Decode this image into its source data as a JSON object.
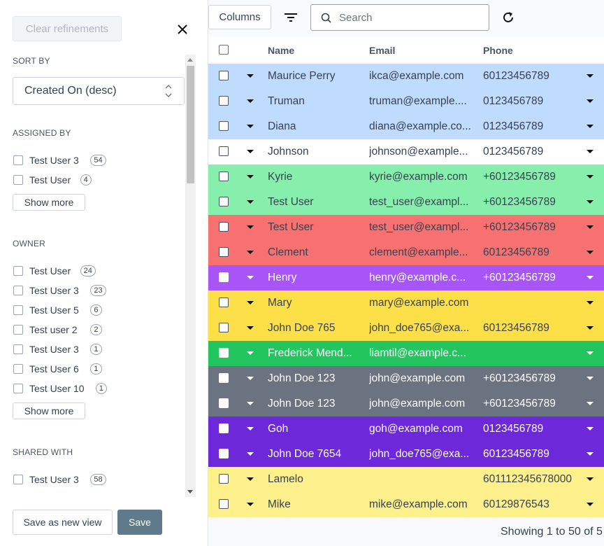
{
  "sidebar": {
    "clear_button": "Clear refinements",
    "sort_by": {
      "title": "SORT BY",
      "value": "Created On (desc)"
    },
    "sections": [
      {
        "title": "ASSIGNED BY",
        "options": [
          {
            "label": "Test User 3",
            "count": 54
          },
          {
            "label": "Test User",
            "count": 4
          }
        ],
        "show_more": "Show more"
      },
      {
        "title": "OWNER",
        "options": [
          {
            "label": "Test User",
            "count": 24
          },
          {
            "label": "Test User 3",
            "count": 23
          },
          {
            "label": "Test User 5",
            "count": 6
          },
          {
            "label": "Test user 2",
            "count": 2
          },
          {
            "label": "Test User 3",
            "count": 1
          },
          {
            "label": "Test User 6",
            "count": 1
          },
          {
            "label": "Test User 10",
            "count": 1
          }
        ],
        "show_more": "Show more"
      },
      {
        "title": "SHARED WITH",
        "options": [
          {
            "label": "Test User 3",
            "count": 58
          }
        ]
      }
    ],
    "save_as_new_view": "Save as new view",
    "save": "Save"
  },
  "toolbar": {
    "columns": "Columns",
    "search_placeholder": "Search"
  },
  "table": {
    "headers": [
      "Name",
      "Email",
      "Phone"
    ],
    "rows": [
      {
        "name": "Maurice Perry",
        "email": "ikca@example.com",
        "phone": "60123456789",
        "color": "#bfdbfe"
      },
      {
        "name": "Truman",
        "email": "truman@example....",
        "phone": "0123456789",
        "color": "#bfdbfe"
      },
      {
        "name": "Diana",
        "email": "diana@example.co...",
        "phone": "0123456789",
        "color": "#bfdbfe"
      },
      {
        "name": "Johnson",
        "email": "johnson@example...",
        "phone": "0123456789",
        "color": "#ffffff"
      },
      {
        "name": "Kyrie",
        "email": "kyrie@example.com",
        "phone": "+60123456789",
        "color": "#86efac"
      },
      {
        "name": "Test User",
        "email": "test_user@exampl...",
        "phone": "+60123456789",
        "color": "#86efac"
      },
      {
        "name": "Test User",
        "email": "test_user@exampl...",
        "phone": "+60123456789",
        "color": "#f87171"
      },
      {
        "name": "Clement",
        "email": "clement@example...",
        "phone": "60123456789",
        "color": "#f87171"
      },
      {
        "name": "Henry",
        "email": "henry@example.c...",
        "phone": "+60123456789",
        "color": "#a855f7"
      },
      {
        "name": "Mary",
        "email": "mary@example.com",
        "phone": null,
        "color": "#fde047"
      },
      {
        "name": "John Doe 765",
        "email": "john_doe765@exa...",
        "phone": "60123456789",
        "color": "#fde047"
      },
      {
        "name": "Frederick Mend...",
        "email": "liamtil@example.c...",
        "phone": null,
        "color": "#22c55e"
      },
      {
        "name": "John Doe 123",
        "email": "john@example.com",
        "phone": "+60123456789",
        "color": "#6b7280"
      },
      {
        "name": "John Doe 123",
        "email": "john@example.com",
        "phone": "+60123456789",
        "color": "#6b7280"
      },
      {
        "name": "Goh",
        "email": "goh@example.com",
        "phone": "0123456789",
        "color": "#6d28d9"
      },
      {
        "name": "John Doe 7654",
        "email": "john_doe765@exa...",
        "phone": "60123456789",
        "color": "#6d28d9"
      },
      {
        "name": "Lamelo",
        "email": null,
        "phone": "601112345678000",
        "color": "#fef08a"
      },
      {
        "name": "Mike",
        "email": "mike@example.com",
        "phone": "60129876543",
        "color": "#fef08a"
      }
    ],
    "footer": "Showing 1 to 50 of 5"
  }
}
